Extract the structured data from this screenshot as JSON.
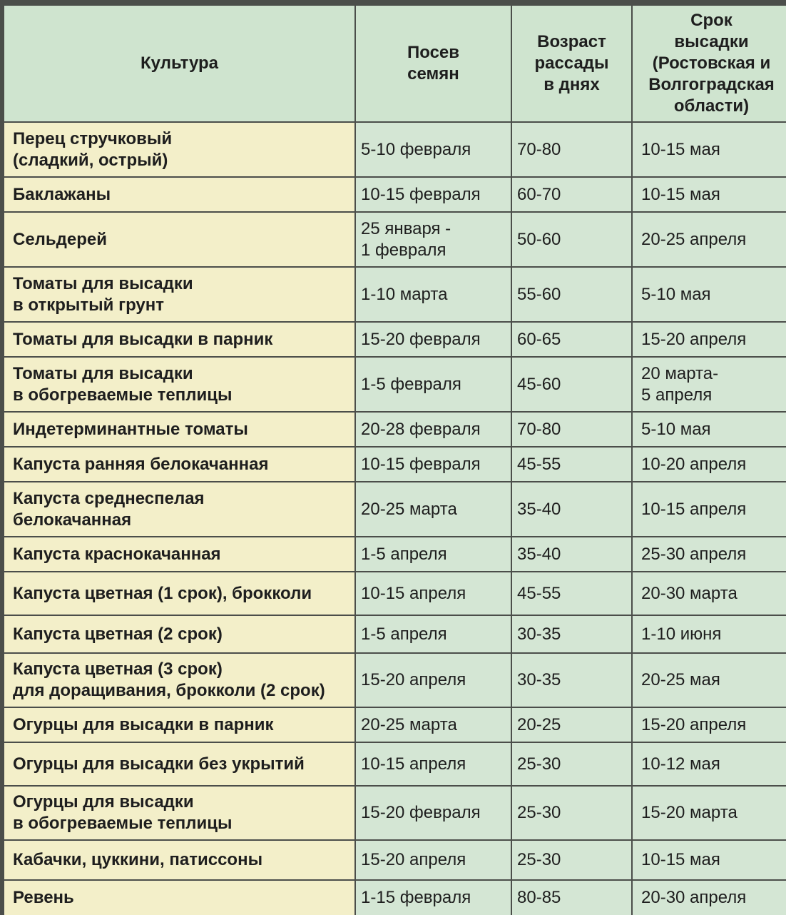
{
  "header": {
    "crop": "Культура",
    "sowing": "Посев\nсемян",
    "age": "Возраст\nрассады\nв днях",
    "planting": "Срок\nвысадки\n(Ростовская  и\nВолгоградская\nобласти)"
  },
  "rows": [
    {
      "crop": "Перец стручковый\n(сладкий, острый)",
      "sowing": "5-10 февраля",
      "age": "70-80",
      "planting": "10-15 мая"
    },
    {
      "crop": "Баклажаны",
      "sowing": "10-15 февраля",
      "age": "60-70",
      "planting": "10-15 мая"
    },
    {
      "crop": "Сельдерей",
      "sowing": "25 января -\n1 февраля",
      "age": "50-60",
      "planting": "20-25 апреля"
    },
    {
      "crop": "Томаты для высадки\nв открытый  грунт",
      "sowing": "1-10 марта",
      "age": "55-60",
      "planting": "5-10 мая"
    },
    {
      "crop": "Томаты для высадки в парник",
      "sowing": "15-20 февраля",
      "age": "60-65",
      "planting": "15-20 апреля"
    },
    {
      "crop": "Томаты для высадки\n в обогреваемые теплицы",
      "sowing": "1-5 февраля",
      "age": "45-60",
      "planting": "20 марта-\n5 апреля"
    },
    {
      "crop": "Индетерминантные томаты",
      "sowing": "20-28 февраля",
      "age": "70-80",
      "planting": "5-10 мая"
    },
    {
      "crop": "Капуста ранняя белокачанная",
      "sowing": "10-15 февраля",
      "age": "45-55",
      "planting": "10-20 апреля"
    },
    {
      "crop": "Капуста среднеспелая\nбелокачанная",
      "sowing": "20-25 марта",
      "age": "35-40",
      "planting": "10-15 апреля"
    },
    {
      "crop": "Капуста краснокачанная",
      "sowing": "1-5 апреля",
      "age": "35-40",
      "planting": "25-30 апреля"
    },
    {
      "crop": "Капуста цветная (1 срок), брокколи",
      "sowing": "10-15 апреля",
      "age": "45-55",
      "planting": "20-30 марта"
    },
    {
      "crop": "Капуста цветная (2 срок)",
      "sowing": "1-5 апреля",
      "age": "30-35",
      "planting": "1-10 июня"
    },
    {
      "crop": "Капуста цветная (3 срок)\nдля доращивания, брокколи (2 срок)",
      "sowing": "15-20 апреля",
      "age": "30-35",
      "planting": "20-25 мая"
    },
    {
      "crop": "Огурцы для высадки в парник",
      "sowing": "20-25 марта",
      "age": "20-25",
      "planting": "15-20 апреля"
    },
    {
      "crop": "Огурцы для высадки без укрытий",
      "sowing": "10-15 апреля",
      "age": "25-30",
      "planting": "10-12 мая"
    },
    {
      "crop": "Огурцы для высадки\nв обогреваемые теплицы",
      "sowing": "15-20 февраля",
      "age": "25-30",
      "planting": " 15-20 марта"
    },
    {
      "crop": "Кабачки, цуккини, патиссоны",
      "sowing": "15-20 апреля",
      "age": "25-30",
      "planting": "10-15 мая"
    },
    {
      "crop": "Ревень",
      "sowing": "1-15 февраля",
      "age": "80-85",
      "planting": "20-30 апреля"
    }
  ]
}
